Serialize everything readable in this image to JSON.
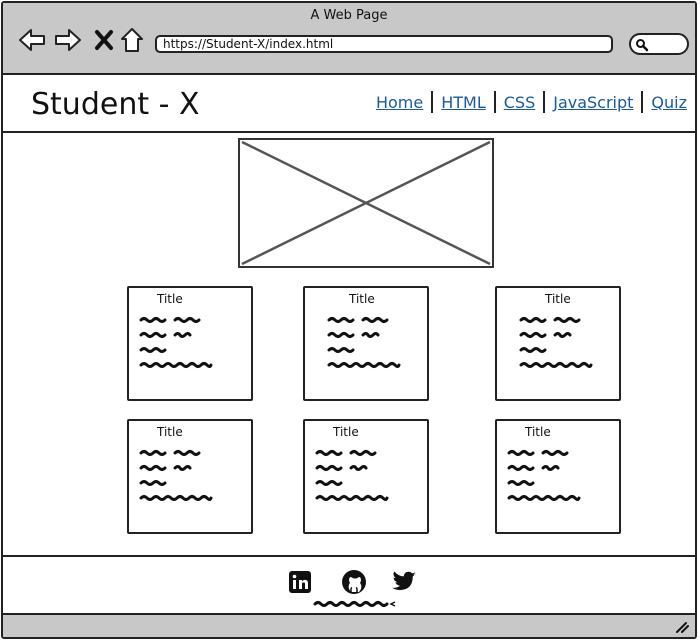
{
  "window": {
    "title": "A Web Page"
  },
  "browser": {
    "url": "https://Student-X/index.html"
  },
  "icons": {
    "back": "back-arrow-icon",
    "forward": "forward-arrow-icon",
    "stop": "close-icon",
    "home": "home-icon",
    "search": "search-icon",
    "linkedin": "linkedin-icon",
    "github": "github-icon",
    "twitter": "twitter-icon",
    "hero": "image-placeholder-icon"
  },
  "site": {
    "brand": "Student - X",
    "nav": [
      "Home",
      "HTML",
      "CSS",
      "JavaScript",
      "Quiz"
    ]
  },
  "cards": [
    {
      "title": "Title"
    },
    {
      "title": "Title"
    },
    {
      "title": "Title"
    },
    {
      "title": "Title"
    },
    {
      "title": "Title"
    },
    {
      "title": "Title"
    }
  ],
  "colors": {
    "chrome": "#c8c8c8",
    "link": "#1a5a9a",
    "ink": "#222222"
  }
}
